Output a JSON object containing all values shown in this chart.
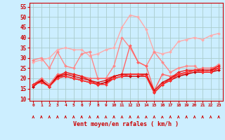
{
  "xlabel": "Vent moyen/en rafales ( km/h )",
  "background_color": "#cceeff",
  "grid_color": "#aacccc",
  "x_ticks": [
    0,
    1,
    2,
    3,
    4,
    5,
    6,
    7,
    8,
    9,
    10,
    11,
    12,
    13,
    14,
    15,
    16,
    17,
    18,
    19,
    20,
    21,
    22,
    23
  ],
  "ylim": [
    9,
    57
  ],
  "yticks": [
    10,
    15,
    20,
    25,
    30,
    35,
    40,
    45,
    50,
    55
  ],
  "series": [
    {
      "color": "#ffaaaa",
      "lw": 1.0,
      "marker": "D",
      "ms": 2.0,
      "values": [
        28,
        29,
        30,
        34,
        35,
        34,
        34,
        31,
        32,
        34,
        35,
        45,
        51,
        50,
        44,
        33,
        32,
        33,
        38,
        39,
        40,
        39,
        41,
        42
      ]
    },
    {
      "color": "#ff8888",
      "lw": 1.0,
      "marker": "D",
      "ms": 2.0,
      "values": [
        29,
        30,
        25,
        33,
        26,
        25,
        32,
        33,
        20,
        20,
        26,
        40,
        35,
        28,
        26,
        33,
        28,
        23,
        25,
        26,
        26,
        23,
        24,
        27
      ]
    },
    {
      "color": "#ff6666",
      "lw": 1.0,
      "marker": "D",
      "ms": 2.0,
      "values": [
        17,
        20,
        17,
        22,
        22,
        22,
        21,
        20,
        20,
        20,
        21,
        22,
        36,
        28,
        26,
        14,
        22,
        21,
        22,
        22,
        24,
        25,
        25,
        26
      ]
    },
    {
      "color": "#ee2222",
      "lw": 1.0,
      "marker": "D",
      "ms": 2.0,
      "values": [
        16,
        19,
        16,
        21,
        23,
        22,
        21,
        19,
        17,
        18,
        21,
        22,
        22,
        22,
        22,
        13,
        17,
        20,
        23,
        24,
        24,
        24,
        24,
        26
      ]
    },
    {
      "color": "#dd1111",
      "lw": 1.0,
      "marker": "D",
      "ms": 2.0,
      "values": [
        17,
        19,
        16,
        21,
        22,
        21,
        20,
        19,
        18,
        19,
        21,
        22,
        22,
        22,
        22,
        14,
        18,
        20,
        22,
        23,
        24,
        24,
        24,
        25
      ]
    },
    {
      "color": "#cc0000",
      "lw": 1.0,
      "marker": "D",
      "ms": 2.0,
      "values": [
        16,
        19,
        16,
        21,
        21,
        20,
        19,
        18,
        17,
        18,
        20,
        21,
        21,
        21,
        21,
        13,
        17,
        19,
        21,
        22,
        23,
        23,
        23,
        24
      ]
    },
    {
      "color": "#ff3333",
      "lw": 1.0,
      "marker": "D",
      "ms": 2.0,
      "values": [
        17,
        18,
        16,
        20,
        21,
        20,
        19,
        18,
        17,
        17,
        20,
        21,
        22,
        22,
        21,
        13,
        17,
        19,
        22,
        23,
        24,
        23,
        23,
        25
      ]
    }
  ],
  "arrow_color": "#cc0000"
}
